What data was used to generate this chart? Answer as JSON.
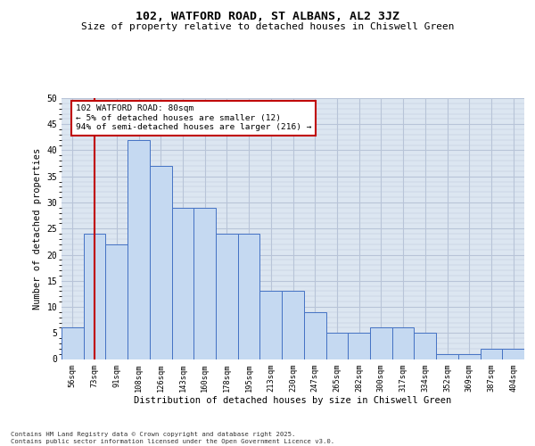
{
  "title": "102, WATFORD ROAD, ST ALBANS, AL2 3JZ",
  "subtitle": "Size of property relative to detached houses in Chiswell Green",
  "xlabel": "Distribution of detached houses by size in Chiswell Green",
  "ylabel": "Number of detached properties",
  "categories": [
    "56sqm",
    "73sqm",
    "91sqm",
    "108sqm",
    "126sqm",
    "143sqm",
    "160sqm",
    "178sqm",
    "195sqm",
    "213sqm",
    "230sqm",
    "247sqm",
    "265sqm",
    "282sqm",
    "300sqm",
    "317sqm",
    "334sqm",
    "352sqm",
    "369sqm",
    "387sqm",
    "404sqm"
  ],
  "bar_values": [
    6,
    24,
    22,
    42,
    37,
    29,
    29,
    24,
    24,
    13,
    13,
    9,
    5,
    5,
    6,
    6,
    5,
    1,
    1,
    2,
    2
  ],
  "bar_color": "#c5d9f1",
  "bar_edge_color": "#4472c4",
  "grid_color": "#b8c4d8",
  "background_color": "#dce6f1",
  "vline_x_index": 1,
  "vline_color": "#c00000",
  "annotation_text": "102 WATFORD ROAD: 80sqm\n← 5% of detached houses are smaller (12)\n94% of semi-detached houses are larger (216) →",
  "annotation_box_edgecolor": "#c00000",
  "footer": "Contains HM Land Registry data © Crown copyright and database right 2025.\nContains public sector information licensed under the Open Government Licence v3.0.",
  "ylim": [
    0,
    50
  ],
  "yticks": [
    0,
    5,
    10,
    15,
    20,
    25,
    30,
    35,
    40,
    45,
    50
  ],
  "title_fontsize": 9.5,
  "subtitle_fontsize": 8,
  "ylabel_fontsize": 7.5,
  "xlabel_fontsize": 7.5
}
